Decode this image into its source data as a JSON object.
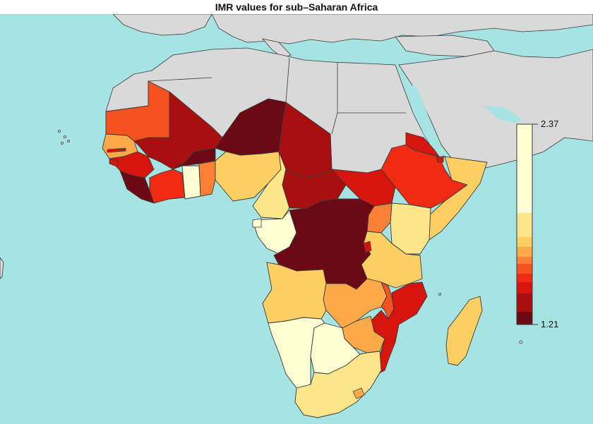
{
  "title": "IMR values for sub–Saharan Africa",
  "colors": {
    "ocean": "#a6e3e3",
    "land_other": "#d9d9d9",
    "border": "#3a3a3a"
  },
  "legend": {
    "max_label": "2.37",
    "min_label": "1.21",
    "bins_top_to_bottom": [
      "#ffffd4",
      "#fde58a",
      "#fdcf63",
      "#fcaa47",
      "#fb8035",
      "#f6521f",
      "#ef2b14",
      "#d7150f",
      "#a8100f",
      "#6b0a14"
    ]
  },
  "map": {
    "regions": [
      {
        "name": "Mauritania",
        "color": "#f6521f"
      },
      {
        "name": "Mali",
        "color": "#a8100f"
      },
      {
        "name": "Niger",
        "color": "#6b0a14"
      },
      {
        "name": "Chad",
        "color": "#a8100f"
      },
      {
        "name": "Senegal",
        "color": "#fcaa47"
      },
      {
        "name": "Guinea",
        "color": "#d7150f"
      },
      {
        "name": "Sierra Leone / Liberia",
        "color": "#6b0a14"
      },
      {
        "name": "Cote d'Ivoire",
        "color": "#ef2b14"
      },
      {
        "name": "Ghana",
        "color": "#ffffd4"
      },
      {
        "name": "Togo / Benin",
        "color": "#fb8035"
      },
      {
        "name": "Burkina Faso",
        "color": "#6b0a14"
      },
      {
        "name": "Nigeria",
        "color": "#fdcf63"
      },
      {
        "name": "Cameroon",
        "color": "#fde58a"
      },
      {
        "name": "Central African Republic",
        "color": "#a8100f"
      },
      {
        "name": "South Sudan",
        "color": "#d7150f"
      },
      {
        "name": "Eritrea",
        "color": "#d7150f"
      },
      {
        "name": "Ethiopia",
        "color": "#ef2b14"
      },
      {
        "name": "Somalia",
        "color": "#fdcf63"
      },
      {
        "name": "Kenya",
        "color": "#fde58a"
      },
      {
        "name": "Uganda",
        "color": "#fb8035"
      },
      {
        "name": "Gabon / Congo",
        "color": "#ffffd4"
      },
      {
        "name": "DR Congo",
        "color": "#6b0a14"
      },
      {
        "name": "Tanzania",
        "color": "#fdcf63"
      },
      {
        "name": "Angola",
        "color": "#fdcf63"
      },
      {
        "name": "Zambia",
        "color": "#fcaa47"
      },
      {
        "name": "Malawi",
        "color": "#f6521f"
      },
      {
        "name": "Mozambique",
        "color": "#d7150f"
      },
      {
        "name": "Zimbabwe",
        "color": "#fcaa47"
      },
      {
        "name": "Namibia",
        "color": "#ffffd4"
      },
      {
        "name": "Botswana",
        "color": "#ffffd4"
      },
      {
        "name": "South Africa",
        "color": "#fde58a"
      },
      {
        "name": "Madagascar",
        "color": "#fdcf63"
      }
    ]
  }
}
